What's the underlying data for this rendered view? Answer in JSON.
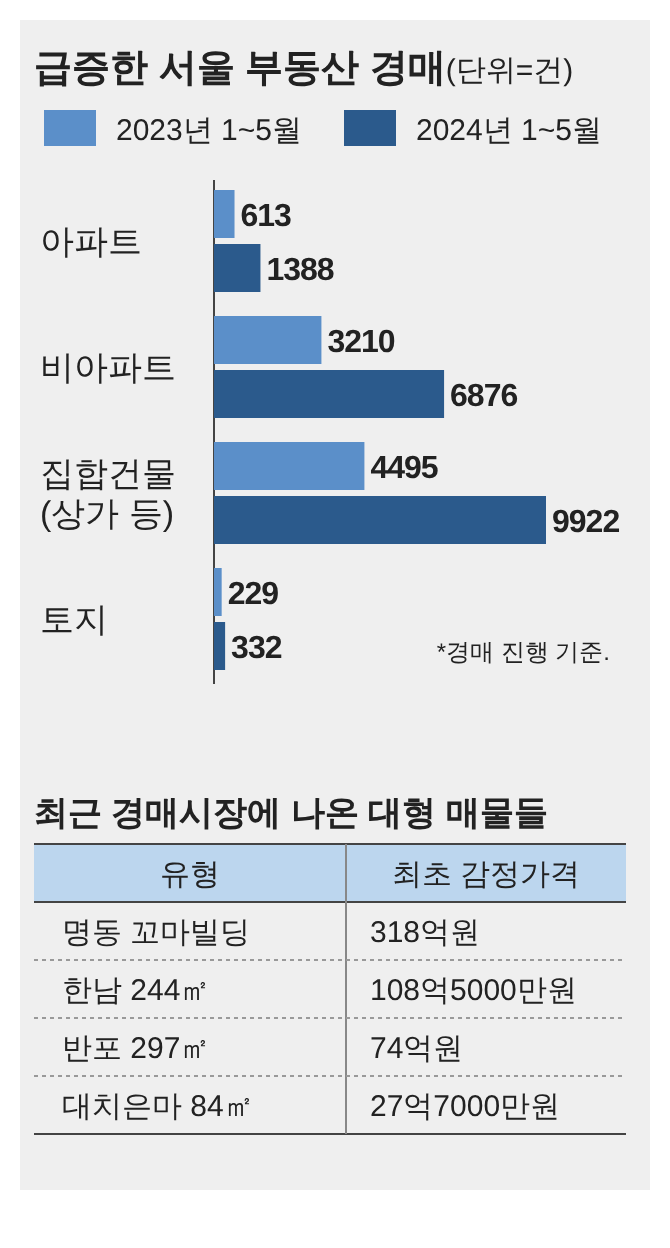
{
  "chart_data": [
    {
      "type": "bar",
      "orientation": "horizontal",
      "title": "급증한 서울 부동산 경매",
      "subtitle": "(단위=건)",
      "categories": [
        "아파트",
        "비아파트",
        "집합건물\n(상가 등)",
        "토지"
      ],
      "series": [
        {
          "name": "2023년 1~5월",
          "color": "#5b8fc9",
          "values": [
            613,
            3210,
            4495,
            229
          ]
        },
        {
          "name": "2024년 1~5월",
          "color": "#2b5a8c",
          "values": [
            1388,
            6876,
            9922,
            332
          ]
        }
      ],
      "data_labels": true,
      "legend": "top",
      "annotations": [
        "*경매 진행 기준."
      ]
    },
    {
      "type": "other",
      "title": "최근 경매시장에 나온 대형 매물들",
      "annotations": [
        "유형",
        "최초 감정가격",
        "명동 꼬마빌딩",
        "318억원",
        "한남 244㎡",
        "108억5000만원",
        "반포 297㎡",
        "74억원",
        "대치은마 84㎡",
        "27억7000만원"
      ]
    }
  ]
}
